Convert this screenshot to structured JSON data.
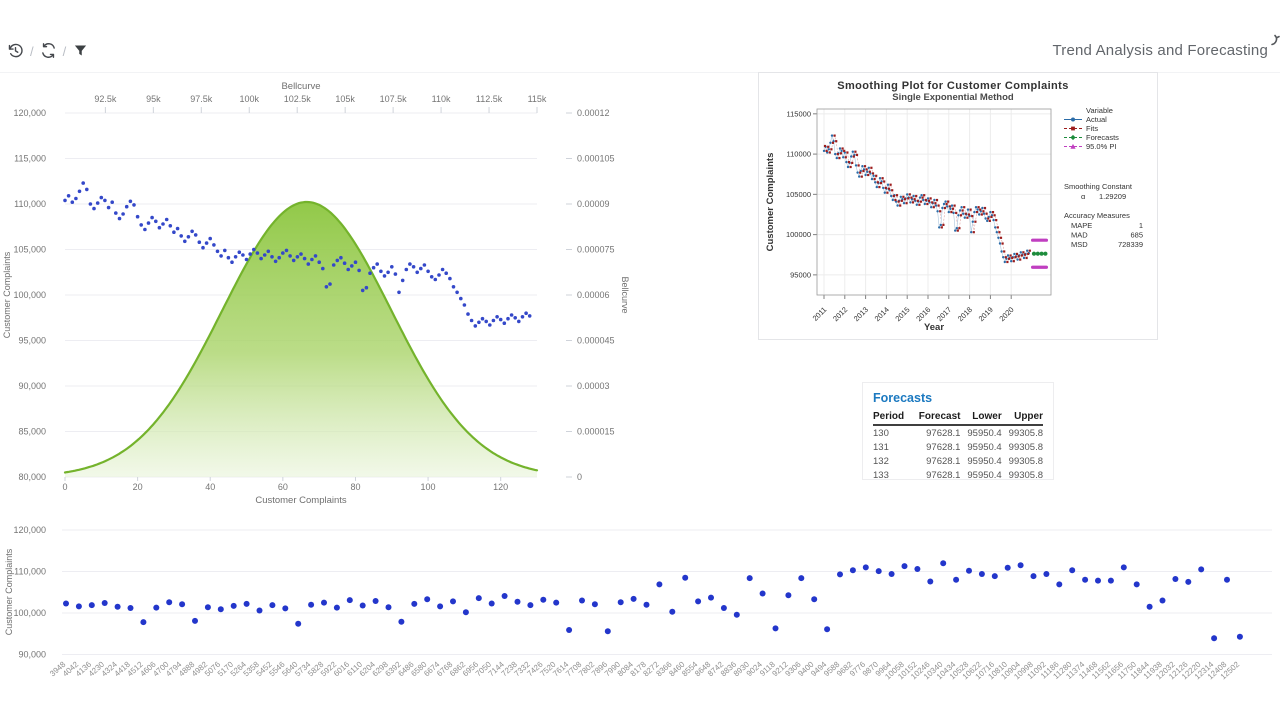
{
  "header": {
    "title": "Trend Analysis and Forecasting",
    "separator": "/",
    "toolbar": [
      {
        "name": "history-button",
        "icon": "history-icon"
      },
      {
        "name": "refresh-button",
        "icon": "refresh-icon"
      },
      {
        "name": "filter-button",
        "icon": "filter-icon"
      }
    ]
  },
  "forecast_table": {
    "title": "Forecasts",
    "title_color": "#1b79c0",
    "columns": [
      "Period",
      "Forecast",
      "Lower",
      "Upper"
    ],
    "rows": [
      [
        "130",
        "97628.1",
        "95950.4",
        "99305.8"
      ],
      [
        "131",
        "97628.1",
        "95950.4",
        "99305.8"
      ],
      [
        "132",
        "97628.1",
        "95950.4",
        "99305.8"
      ],
      [
        "133",
        "97628.1",
        "95950.4",
        "99305.8"
      ]
    ]
  },
  "chart_data": [
    {
      "id": "bellcurve_scatter",
      "type": "scatter",
      "left_axis": {
        "label": "Customer Complaints",
        "min": 80000,
        "max": 120000,
        "tick_values": [
          120000,
          115000,
          110000,
          105000,
          100000,
          95000,
          90000,
          85000,
          80000
        ],
        "tick_labels": [
          "120,000",
          "115,000",
          "110,000",
          "105,000",
          "100,000",
          "95,000",
          "90,000",
          "85,000",
          "80,000"
        ]
      },
      "right_axis": {
        "label": "Bellcurve",
        "min": 0,
        "max": 0.00012,
        "tick_values": [
          0.00012,
          0.000105,
          9e-05,
          7.5e-05,
          6e-05,
          4.5e-05,
          3e-05,
          1.5e-05,
          0
        ],
        "tick_labels": [
          "0.00012",
          "0.000105",
          "0.00009",
          "0.000075",
          "0.00006",
          "0.000045",
          "0.00003",
          "0.000015",
          "0"
        ]
      },
      "top_axis": {
        "label": "Bellcurve",
        "min": 90395,
        "max": 115000,
        "tick_values": [
          92500,
          95000,
          97500,
          100000,
          102500,
          105000,
          107500,
          110000,
          112500,
          115000
        ],
        "tick_labels": [
          "92.5k",
          "95k",
          "97.5k",
          "100k",
          "102.5k",
          "105k",
          "107.5k",
          "110k",
          "112.5k",
          "115k"
        ]
      },
      "bottom_axis": {
        "label": "Customer Complaints",
        "min": 0,
        "max": 130,
        "tick_values": [
          0,
          20,
          40,
          60,
          80,
          100,
          120
        ]
      },
      "series": [
        {
          "name": "Customer Complaints",
          "type": "scatter",
          "color": "#3448c9",
          "values": [
            110400,
            110900,
            110200,
            110600,
            111400,
            112300,
            111600,
            110000,
            109500,
            110100,
            110700,
            110400,
            109600,
            110200,
            109000,
            108400,
            108900,
            109700,
            110300,
            109900,
            108600,
            107700,
            107200,
            107900,
            108500,
            108100,
            107400,
            107800,
            108300,
            107600,
            106900,
            107300,
            106500,
            105900,
            106400,
            107000,
            106600,
            105800,
            105200,
            105700,
            106200,
            105500,
            104800,
            104300,
            104900,
            104100,
            103600,
            104200,
            104700,
            104400,
            103900,
            104500,
            105000,
            104600,
            104000,
            104400,
            104800,
            104200,
            103700,
            104100,
            104600,
            104900,
            104300,
            103800,
            104200,
            104500,
            104000,
            103400,
            103900,
            104300,
            103600,
            102900,
            100900,
            101200,
            103300,
            103800,
            104100,
            103500,
            102800,
            103200,
            103600,
            102700,
            100500,
            100800,
            102400,
            103000,
            103400,
            102600,
            102100,
            102500,
            103100,
            102300,
            100300,
            101600,
            102800,
            103400,
            103100,
            102500,
            102900,
            103300,
            102600,
            102000,
            101700,
            102200,
            102800,
            102400,
            101800,
            100900,
            100300,
            99600,
            98900,
            97900,
            97200,
            96600,
            97000,
            97400,
            97100,
            96700,
            97200,
            97600,
            97300,
            96900,
            97400,
            97800,
            97500,
            97100,
            97600,
            98000,
            97700
          ]
        },
        {
          "name": "Bellcurve",
          "type": "area",
          "mean": 103000,
          "sigma": 4400,
          "stroke": "#74b32c",
          "fill_top": "#8cc63f",
          "fill_mid": "#aad46a",
          "fill_bottom": "#e9f4da"
        }
      ]
    },
    {
      "id": "smoothing_plot",
      "type": "line",
      "title": "Smoothing Plot for Customer Complaints",
      "subtitle": "Single Exponential Method",
      "xlabel": "Year",
      "ylabel": "Customer Complaints",
      "series_source": "chart_data.0.series.0.values",
      "start_year": 2011,
      "points_per_year": 13,
      "x_ticks": [
        2011,
        2012,
        2013,
        2014,
        2015,
        2016,
        2017,
        2018,
        2019,
        2020
      ],
      "y_ticks": [
        115000,
        110000,
        105000,
        100000,
        95000
      ],
      "ylim": [
        92500,
        115600
      ],
      "legend": {
        "title": "Variable",
        "items": [
          {
            "label": "Actual",
            "color": "#2b6ca8",
            "marker": "circle",
            "dash": ""
          },
          {
            "label": "Fits",
            "color": "#9c1c1c",
            "marker": "square",
            "dash": "3 2"
          },
          {
            "label": "Forecasts",
            "color": "#1d8c3c",
            "marker": "diamond",
            "dash": "3 2"
          },
          {
            "label": "95.0% PI",
            "color": "#c03fc0",
            "marker": "triangle",
            "dash": "3 2"
          }
        ]
      },
      "annotations": {
        "smoothing_constant_title": "Smoothing Constant",
        "alpha_label": "α",
        "alpha": "1.29209",
        "accuracy_title": "Accuracy Measures",
        "measures": [
          [
            "MAPE",
            "1"
          ],
          [
            "MAD",
            "685"
          ],
          [
            "MSD",
            "728339"
          ]
        ]
      },
      "forecast": {
        "value": 97628.1,
        "lower": 95950.4,
        "upper": 99305.8,
        "count": 4
      }
    },
    {
      "id": "bottom_scatter",
      "type": "scatter",
      "ylabel": "Customer Complaints",
      "color": "#2336cb",
      "y_tick_values": [
        120000,
        110000,
        100000,
        90000
      ],
      "y_tick_labels": [
        "120,000",
        "110,000",
        "100,000",
        "90,000"
      ],
      "x_labels": [
        "3948",
        "4042",
        "4136",
        "4230",
        "4324",
        "4418",
        "4512",
        "4606",
        "4700",
        "4794",
        "4888",
        "4982",
        "5076",
        "5170",
        "5264",
        "5358",
        "5452",
        "5546",
        "5640",
        "5734",
        "5828",
        "5922",
        "6016",
        "6110",
        "6204",
        "6298",
        "6392",
        "6486",
        "6580",
        "6674",
        "6768",
        "6862",
        "6956",
        "7050",
        "7144",
        "7238",
        "7332",
        "7426",
        "7520",
        "7614",
        "7708",
        "7802",
        "7896",
        "7990",
        "8084",
        "8178",
        "8272",
        "8366",
        "8460",
        "8554",
        "8648",
        "8742",
        "8836",
        "8930",
        "9024",
        "9118",
        "9212",
        "9306",
        "9400",
        "9494",
        "9588",
        "9682",
        "9776",
        "9870",
        "9964",
        "10058",
        "10152",
        "10246",
        "10340",
        "10434",
        "10528",
        "10622",
        "10716",
        "10810",
        "10904",
        "10998",
        "11092",
        "11186",
        "11280",
        "11374",
        "11468",
        "11562",
        "11656",
        "11750",
        "11844",
        "11938",
        "12032",
        "12126",
        "12220",
        "12314",
        "12408",
        "12502"
      ],
      "values": [
        102300,
        101600,
        101900,
        102400,
        101500,
        101200,
        97800,
        101300,
        102600,
        102100,
        98100,
        101400,
        100900,
        101700,
        102200,
        100600,
        101900,
        101100,
        97400,
        102000,
        102500,
        101300,
        103100,
        101800,
        102900,
        101400,
        97900,
        102200,
        103300,
        101600,
        102800,
        100200,
        103600,
        102300,
        104100,
        102700,
        101900,
        103200,
        102500,
        95900,
        103000,
        102100,
        95600,
        102600,
        103400,
        102000,
        106900,
        100300,
        108500,
        102800,
        103700,
        101200,
        99600,
        108400,
        104700,
        96300,
        104300,
        108400,
        103300,
        96100,
        109300,
        110300,
        111000,
        110100,
        109400,
        111300,
        110600,
        107600,
        112000,
        108000,
        110200,
        109400,
        108900,
        110900,
        111500,
        108900,
        109400,
        106900,
        110300,
        108000,
        107800,
        107800,
        111000,
        106900,
        101500,
        103000,
        108200,
        107500,
        110500,
        93900,
        108000,
        94300
      ]
    }
  ]
}
